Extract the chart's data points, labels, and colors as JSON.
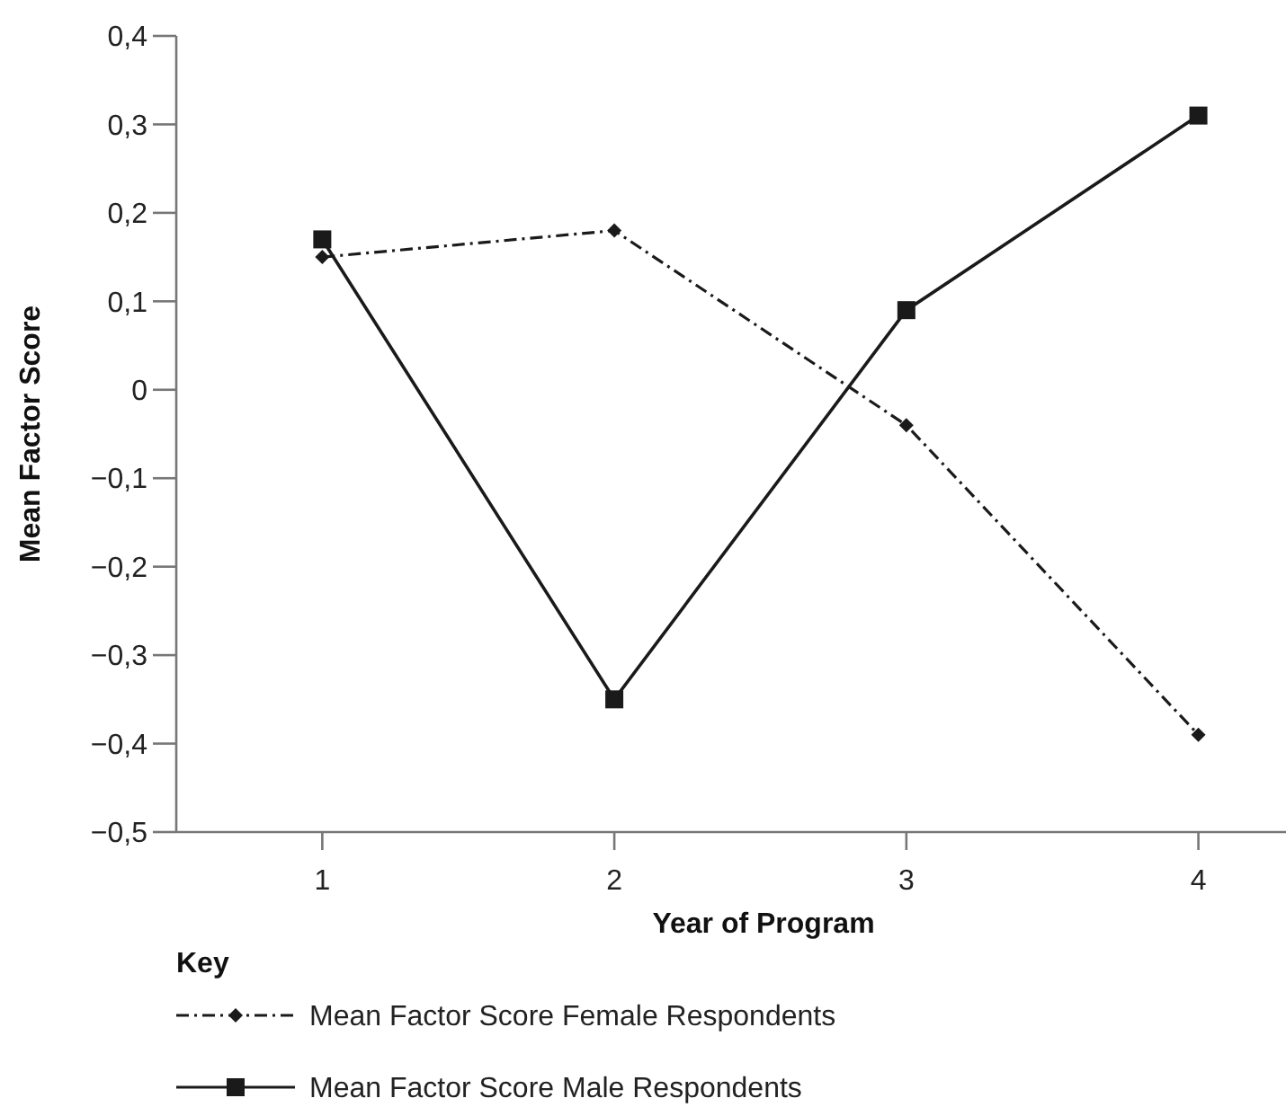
{
  "chart_data": {
    "type": "line",
    "xlabel": "Year of Program",
    "ylabel": "Mean Factor Score",
    "legend_title": "Key",
    "x": [
      1,
      2,
      3,
      4
    ],
    "xlim": [
      0.5,
      4.3
    ],
    "xticks": [
      1,
      2,
      3,
      4
    ],
    "ylim": [
      -0.5,
      0.4
    ],
    "yticks": [
      {
        "value": -0.5,
        "label": "−0,5"
      },
      {
        "value": -0.4,
        "label": "−0,4"
      },
      {
        "value": -0.3,
        "label": "−0,3"
      },
      {
        "value": -0.2,
        "label": "−0,2"
      },
      {
        "value": -0.1,
        "label": "−0,1"
      },
      0,
      {
        "value": 0.1,
        "label": "0,1"
      },
      {
        "value": 0.2,
        "label": "0,2"
      },
      {
        "value": 0.3,
        "label": "0,3"
      },
      {
        "value": 0.4,
        "label": "0,4"
      }
    ],
    "grid": false,
    "legend": "bottom left",
    "series": [
      {
        "name": "Mean Factor Score Female Respondents",
        "color": "#1a1a1a",
        "marker": "diamond",
        "line_style": "dashdot",
        "values": [
          0.15,
          0.18,
          -0.04,
          -0.39
        ]
      },
      {
        "name": "Mean Factor Score Male Respondents",
        "color": "#1a1a1a",
        "marker": "square",
        "line_style": "solid",
        "values": [
          0.17,
          -0.35,
          0.09,
          0.31
        ]
      }
    ]
  }
}
